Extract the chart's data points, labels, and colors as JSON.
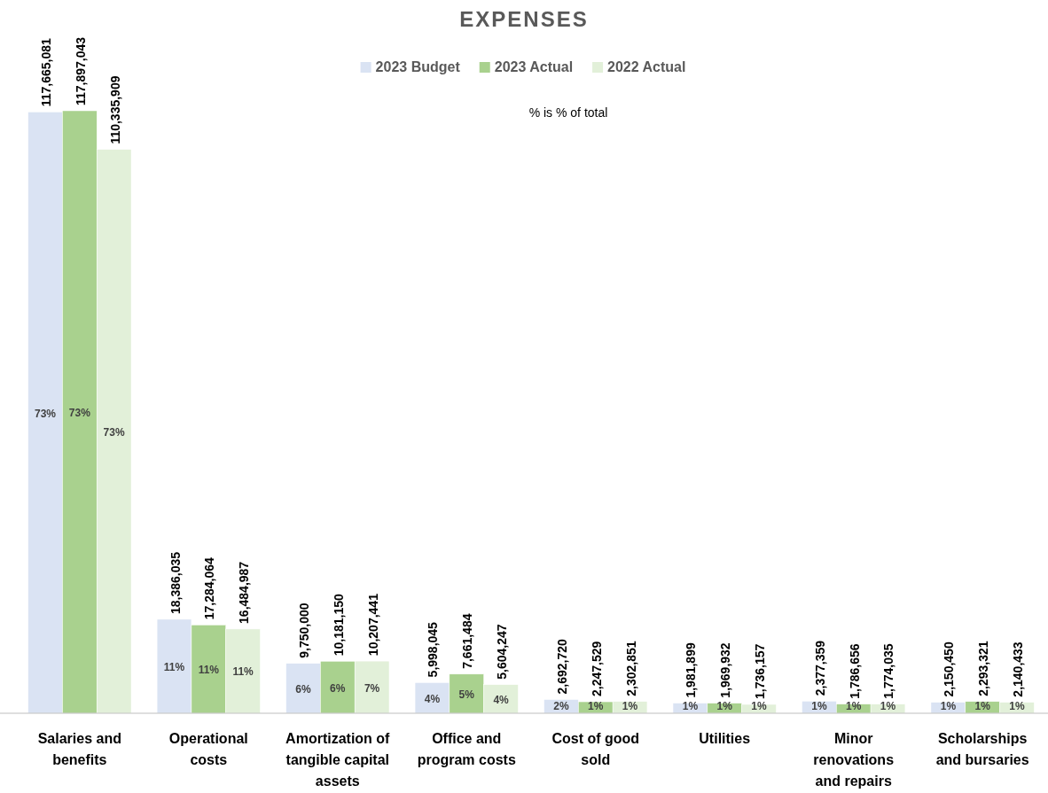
{
  "chart_data": {
    "type": "bar",
    "title": "EXPENSES",
    "categories": [
      "Salaries and benefits",
      "Operational costs",
      "Amortization of tangible capital assets",
      "Office and program costs",
      "Cost of good sold",
      "Utilities",
      "Minor renovations and repairs",
      "Scholarships and bursaries"
    ],
    "series": [
      {
        "name": "2023 Budget",
        "color": "#dae3f3",
        "values": [
          117665081,
          18386035,
          9750000,
          5998045,
          2692720,
          1981899,
          2377359,
          2150450
        ],
        "value_labels": [
          "117,665,081",
          "18,386,035",
          "9,750,000",
          "5,998,045",
          "2,692,720",
          "1,981,899",
          "2,377,359",
          "2,150,450"
        ]
      },
      {
        "name": "2023 Actual",
        "color": "#a9d18e",
        "values": [
          117897043,
          17284064,
          10181150,
          7661484,
          2247529,
          1969932,
          1786656,
          2293321
        ],
        "value_labels": [
          "117,897,043",
          "17,284,064",
          "10,181,150",
          "7,661,484",
          "2,247,529",
          "1,969,932",
          "1,786,656",
          "2,293,321"
        ]
      },
      {
        "name": "2022 Actual",
        "color": "#e2f0d9",
        "values": [
          110335909,
          16484987,
          10207441,
          5604247,
          2302851,
          1736157,
          1774035,
          2140433
        ],
        "value_labels": [
          "110,335,909",
          "16,484,987",
          "10,207,441",
          "5,604,247",
          "2,302,851",
          "1,736,157",
          "1,774,035",
          "2,140,433"
        ]
      }
    ],
    "legend": "top",
    "annotations": [
      "% is % of total",
      "73%",
      "73%",
      "73%",
      "11%",
      "11%",
      "11%",
      "6%",
      "6%",
      "7%",
      "4%",
      "5%",
      "4%",
      "2%",
      "1%",
      "1%",
      "1%",
      "1%",
      "1%",
      "1%",
      "1%",
      "1%",
      "1%",
      "1%",
      "1%"
    ]
  }
}
